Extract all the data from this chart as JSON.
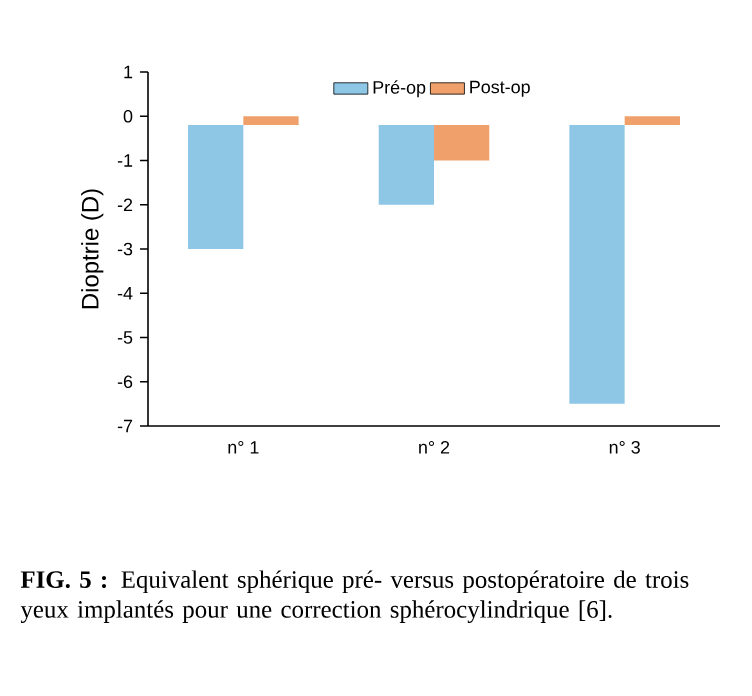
{
  "chart_data": {
    "type": "bar",
    "ylabel": "Dioptrie (D)",
    "categories": [
      "n° 1",
      "n° 2",
      "n° 3"
    ],
    "series": [
      {
        "name": "Pré-op",
        "color": "#8ec6e6",
        "base": [
          -0.2,
          -0.2,
          -0.2
        ],
        "values": [
          -2.8,
          -1.8,
          -6.3
        ]
      },
      {
        "name": "Post-op",
        "color": "#f0a06a",
        "base": [
          0,
          -0.2,
          0
        ],
        "values": [
          -0.2,
          -0.8,
          -0.2
        ]
      }
    ],
    "ylim": [
      -7,
      1
    ],
    "yticks": [
      -7,
      -6,
      -5,
      -4,
      -3,
      -2,
      -1,
      0,
      1
    ],
    "legend": "top",
    "annotations": [
      "**FIG. 5 :** Equivalent sphérique pré- versus postopératoire de trois yeux implantés pour une correction sphérocylindrique [6]."
    ]
  }
}
